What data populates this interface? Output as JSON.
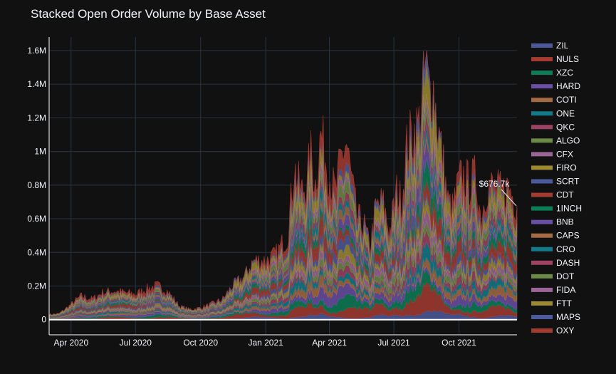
{
  "chart_data": {
    "type": "area",
    "stacked": true,
    "title": "Stacked Open Order Volume by Base Asset",
    "xlabel": "",
    "ylabel": "",
    "x_range": [
      "2020-03-01",
      "2021-12-22"
    ],
    "ylim": [
      -90000,
      1680000
    ],
    "y_ticks": [
      {
        "value": 0,
        "label": "0"
      },
      {
        "value": 200000,
        "label": "0.2M"
      },
      {
        "value": 400000,
        "label": "0.4M"
      },
      {
        "value": 600000,
        "label": "0.6M"
      },
      {
        "value": 800000,
        "label": "0.8M"
      },
      {
        "value": 1000000,
        "label": "1M"
      },
      {
        "value": 1200000,
        "label": "1.2M"
      },
      {
        "value": 1400000,
        "label": "1.4M"
      },
      {
        "value": 1600000,
        "label": "1.6M"
      }
    ],
    "x_ticks": [
      {
        "date": "2020-04-01",
        "label": "Apr 2020"
      },
      {
        "date": "2020-07-01",
        "label": "Jul 2020"
      },
      {
        "date": "2020-10-01",
        "label": "Oct 2020"
      },
      {
        "date": "2021-01-01",
        "label": "Jan 2021"
      },
      {
        "date": "2021-04-01",
        "label": "Apr 2021"
      },
      {
        "date": "2021-07-01",
        "label": "Jul 2021"
      },
      {
        "date": "2021-10-01",
        "label": "Oct 2021"
      }
    ],
    "total_series": {
      "x": [
        "2020-03-01",
        "2020-03-15",
        "2020-04-01",
        "2020-04-15",
        "2020-05-01",
        "2020-05-15",
        "2020-06-01",
        "2020-06-15",
        "2020-07-01",
        "2020-07-15",
        "2020-08-01",
        "2020-08-15",
        "2020-09-01",
        "2020-09-15",
        "2020-10-01",
        "2020-10-15",
        "2020-11-01",
        "2020-11-15",
        "2020-12-01",
        "2020-12-15",
        "2021-01-01",
        "2021-01-15",
        "2021-02-01",
        "2021-02-10",
        "2021-02-20",
        "2021-03-01",
        "2021-03-05",
        "2021-03-12",
        "2021-03-20",
        "2021-03-27",
        "2021-04-03",
        "2021-04-10",
        "2021-04-17",
        "2021-04-25",
        "2021-05-01",
        "2021-05-10",
        "2021-05-20",
        "2021-05-28",
        "2021-06-05",
        "2021-06-15",
        "2021-06-25",
        "2021-07-05",
        "2021-07-12",
        "2021-07-20",
        "2021-07-28",
        "2021-08-05",
        "2021-08-10",
        "2021-08-15",
        "2021-08-20",
        "2021-08-25",
        "2021-09-01",
        "2021-09-08",
        "2021-09-15",
        "2021-09-22",
        "2021-10-01",
        "2021-10-08",
        "2021-10-15",
        "2021-10-25",
        "2021-11-01",
        "2021-11-10",
        "2021-11-20",
        "2021-12-01",
        "2021-12-10",
        "2021-12-22"
      ],
      "values": [
        30000,
        35000,
        90000,
        140000,
        120000,
        160000,
        170000,
        160000,
        150000,
        180000,
        200000,
        170000,
        80000,
        60000,
        70000,
        90000,
        120000,
        200000,
        250000,
        350000,
        350000,
        380000,
        500000,
        900000,
        750000,
        820000,
        1000000,
        800000,
        1100000,
        950000,
        820000,
        750000,
        950000,
        1050000,
        860000,
        600000,
        560000,
        420000,
        650000,
        700000,
        520000,
        760000,
        700000,
        1050000,
        1100000,
        1150000,
        1300000,
        1500000,
        1350000,
        1400000,
        1150000,
        950000,
        700000,
        650000,
        820000,
        850000,
        800000,
        850000,
        600000,
        800000,
        780000,
        750000,
        790000,
        676700
      ]
    },
    "series": [
      {
        "name": "ZIL",
        "color": "#4c5a9c",
        "share": 0.03
      },
      {
        "name": "NULS",
        "color": "#a33b31",
        "share": 0.07
      },
      {
        "name": "XZC",
        "color": "#0c7d56",
        "share": 0.05
      },
      {
        "name": "HARD",
        "color": "#6b4fa5",
        "share": 0.05
      },
      {
        "name": "COTI",
        "color": "#a36a43",
        "share": 0.04
      },
      {
        "name": "ONE",
        "color": "#137a8a",
        "share": 0.04
      },
      {
        "name": "QKC",
        "color": "#9c4262",
        "share": 0.04
      },
      {
        "name": "ALGO",
        "color": "#6b8a47",
        "share": 0.04
      },
      {
        "name": "CFX",
        "color": "#9c6597",
        "share": 0.04
      },
      {
        "name": "FIRO",
        "color": "#9c8a2f",
        "share": 0.04
      },
      {
        "name": "SCRT",
        "color": "#4c5a9c",
        "share": 0.04
      },
      {
        "name": "CDT",
        "color": "#a33b31",
        "share": 0.07
      },
      {
        "name": "1INCH",
        "color": "#0c7d56",
        "share": 0.05
      },
      {
        "name": "BNB",
        "color": "#6b4fa5",
        "share": 0.05
      },
      {
        "name": "CAPS",
        "color": "#a36a43",
        "share": 0.04
      },
      {
        "name": "CRO",
        "color": "#137a8a",
        "share": 0.04
      },
      {
        "name": "DASH",
        "color": "#9c4262",
        "share": 0.04
      },
      {
        "name": "DOT",
        "color": "#6b8a47",
        "share": 0.05
      },
      {
        "name": "FIDA",
        "color": "#9c6597",
        "share": 0.04
      },
      {
        "name": "FTT",
        "color": "#9c8a2f",
        "share": 0.08
      },
      {
        "name": "MAPS",
        "color": "#4c5a9c",
        "share": 0.04
      },
      {
        "name": "OXY",
        "color": "#a33b31",
        "share": 0.05
      }
    ],
    "legend_position": "right",
    "annotation": {
      "text": "$676.7k",
      "date": "2021-12-22",
      "value": 676700
    },
    "grid": true,
    "background": "#111111",
    "gridcolor": "#283442"
  }
}
